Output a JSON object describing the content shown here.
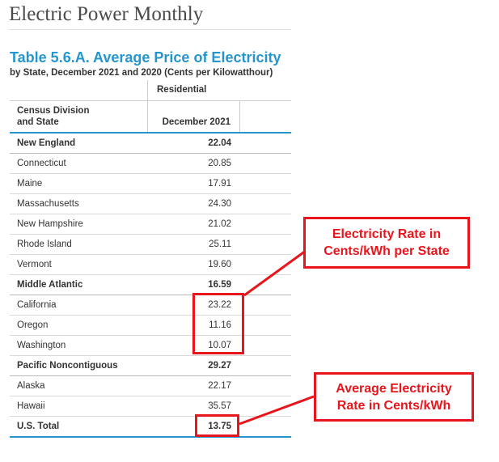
{
  "site_title": "Electric Power Monthly",
  "table": {
    "title": "Table 5.6.A. Average Price of Electricity",
    "subtitle": "by State, December 2021 and 2020 (Cents per Kilowatthour)",
    "column_group": "Residential",
    "col_state_line1": "Census Division",
    "col_state_line2": "and State",
    "col_value": "December 2021",
    "rows": [
      {
        "state": "New England",
        "value": "22.04",
        "group": true
      },
      {
        "state": "Connecticut",
        "value": "20.85"
      },
      {
        "state": "Maine",
        "value": "17.91"
      },
      {
        "state": "Massachusetts",
        "value": "24.30"
      },
      {
        "state": "New Hampshire",
        "value": "21.02"
      },
      {
        "state": "Rhode Island",
        "value": "25.11"
      },
      {
        "state": "Vermont",
        "value": "19.60"
      },
      {
        "state": "Middle Atlantic",
        "value": "16.59",
        "group": true
      },
      {
        "state": "California",
        "value": "23.22"
      },
      {
        "state": "Oregon",
        "value": "11.16"
      },
      {
        "state": "Washington",
        "value": "10.07"
      },
      {
        "state": "Pacific Noncontiguous",
        "value": "29.27",
        "group": true
      },
      {
        "state": "Alaska",
        "value": "22.17"
      },
      {
        "state": "Hawaii",
        "value": "35.57"
      },
      {
        "state": "U.S. Total",
        "value": "13.75",
        "group": true,
        "total": true
      }
    ]
  },
  "annotations": {
    "callout_state": {
      "line1": "Electricity Rate in",
      "line2": "Cents/kWh per State"
    },
    "callout_average": {
      "line1": "Average Electricity",
      "line2": "Rate in Cents/kWh"
    }
  },
  "colors": {
    "accent_blue": "#2596cd",
    "annotation_red": "#e8161c"
  }
}
